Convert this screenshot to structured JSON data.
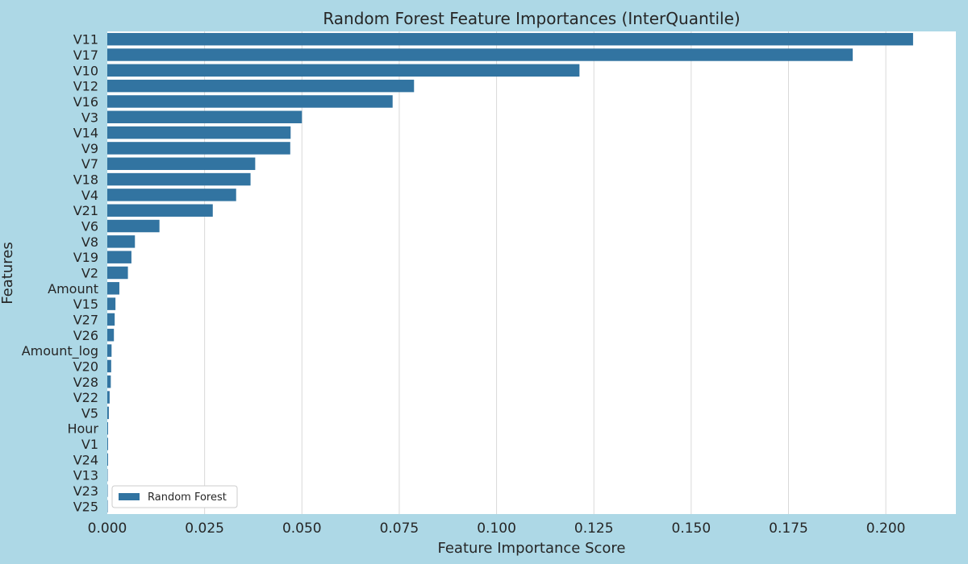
{
  "chart_data": {
    "type": "bar",
    "orientation": "horizontal",
    "title": "Random Forest Feature Importances (InterQuantile)",
    "xlabel": "Feature Importance Score",
    "ylabel": "Features",
    "xlim": [
      0,
      0.218
    ],
    "xticks": [
      0.0,
      0.025,
      0.05,
      0.075,
      0.1,
      0.125,
      0.15,
      0.175,
      0.2
    ],
    "xtick_labels": [
      "0.000",
      "0.025",
      "0.050",
      "0.075",
      "0.100",
      "0.125",
      "0.150",
      "0.175",
      "0.200"
    ],
    "grid": "vertical",
    "legend_position": "lower-left",
    "bar_color": "#3274a1",
    "background_color": "#add8e6",
    "plot_background": "#ffffff",
    "categories": [
      "V11",
      "V17",
      "V10",
      "V12",
      "V16",
      "V3",
      "V14",
      "V9",
      "V7",
      "V18",
      "V4",
      "V21",
      "V6",
      "V8",
      "V19",
      "V2",
      "Amount",
      "V15",
      "V27",
      "V26",
      "Amount_log",
      "V20",
      "V28",
      "V22",
      "V5",
      "Hour",
      "V1",
      "V24",
      "V13",
      "V23",
      "V25"
    ],
    "series": [
      {
        "name": "Random Forest",
        "values": [
          0.207,
          0.1915,
          0.1213,
          0.0788,
          0.0733,
          0.05,
          0.0471,
          0.047,
          0.038,
          0.0368,
          0.0331,
          0.0271,
          0.0134,
          0.0071,
          0.0062,
          0.0053,
          0.0031,
          0.0021,
          0.0019,
          0.0017,
          0.0011,
          0.001,
          0.0009,
          0.0006,
          0.0004,
          0.0002,
          0.0002,
          0.0002,
          0.0001,
          0.0001,
          0.0001
        ]
      }
    ]
  }
}
